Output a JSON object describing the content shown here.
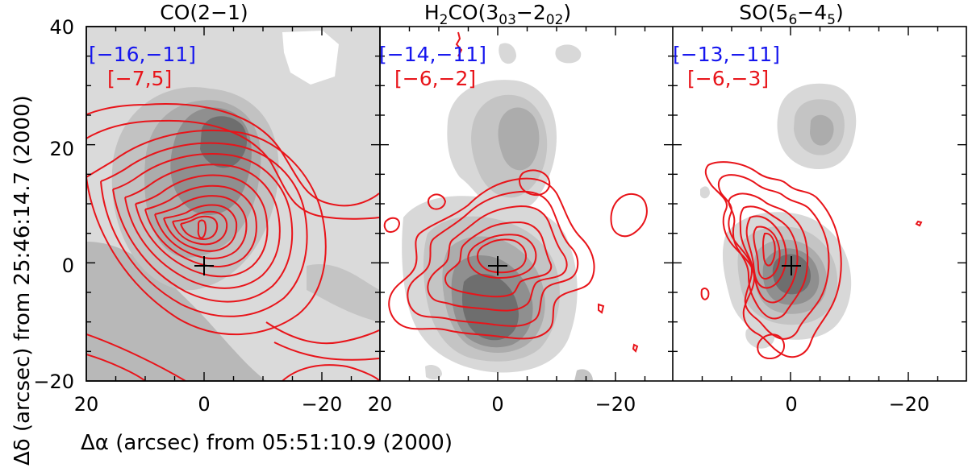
{
  "figure": {
    "ylabel": "Δδ (arcsec) from 25:46:14.7 (2000)",
    "xlabel": "Δα (arcsec) from 05:51:10.9 (2000)",
    "colors": {
      "contour": "#e8141a",
      "blue_range": "#1515ee",
      "red_range": "#e8141a"
    }
  },
  "panels": [
    {
      "title_main": "CO(2-1)",
      "title_parts": [
        "CO(2",
        "−",
        "1)"
      ],
      "blue_range": "[−16,−11]",
      "red_range": "[−7,5]"
    },
    {
      "title_parts": [
        "H",
        "2",
        "CO(3",
        "03",
        "−",
        "2",
        "02",
        ")"
      ],
      "blue_range": "[−14,−11]",
      "red_range": "[−6,−2]"
    },
    {
      "title_parts": [
        "SO(5",
        "6",
        "−",
        "4",
        "5",
        ")"
      ],
      "blue_range": "[−13,−11]",
      "red_range": "[−6,−3]"
    }
  ],
  "axes": {
    "x_ticks": [
      "20",
      "0",
      "−20"
    ],
    "x_tick_values": [
      20,
      0,
      -20
    ],
    "y_ticks": [
      "40",
      "20",
      "0",
      "−20"
    ],
    "y_tick_values": [
      40,
      20,
      0,
      -20
    ],
    "xlim": [
      20,
      -30
    ],
    "ylim": [
      -20,
      40
    ]
  }
}
